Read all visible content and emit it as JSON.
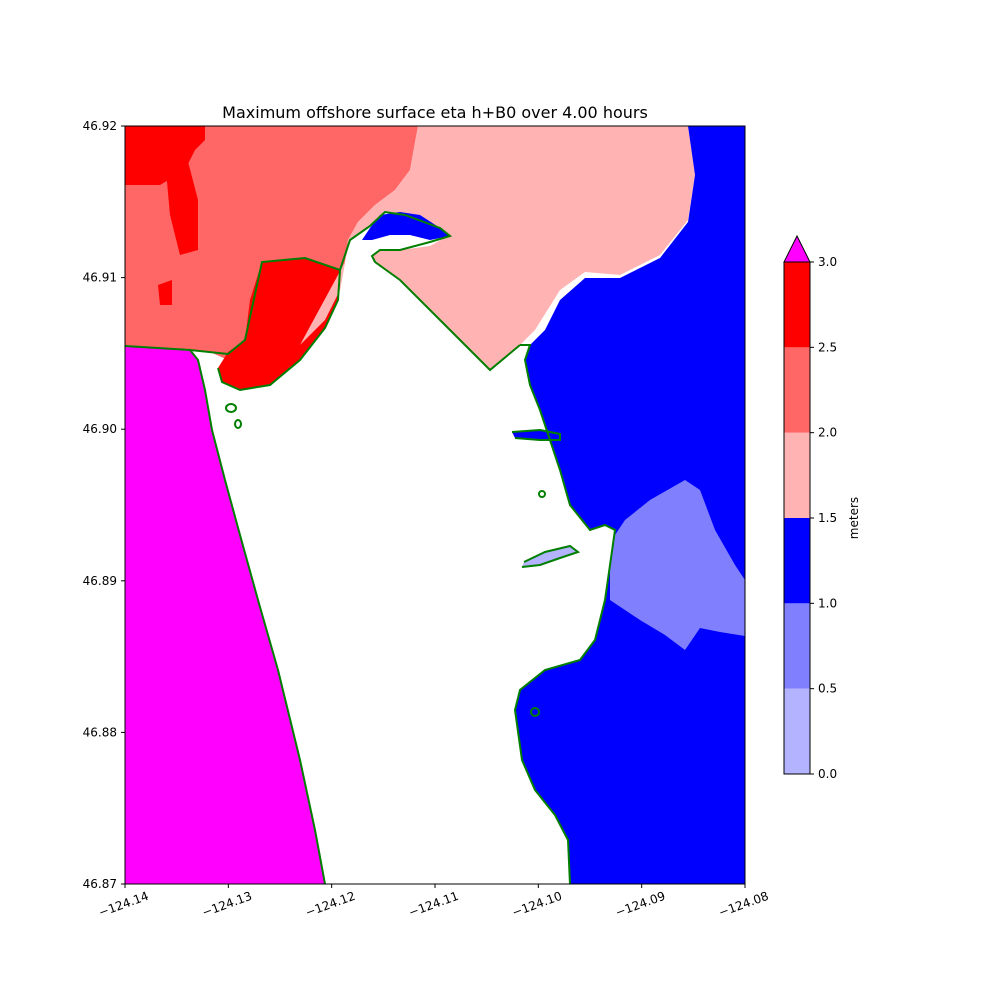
{
  "chart_data": {
    "type": "heatmap",
    "title": "Maximum offshore surface eta h+B0 over 4.00 hours",
    "xlim": [
      -124.14,
      -124.08
    ],
    "ylim": [
      46.87,
      46.92
    ],
    "x_ticks": [
      "−124.14",
      "−124.13",
      "−124.12",
      "−124.11",
      "−124.10",
      "−124.09",
      "−124.08"
    ],
    "y_ticks": [
      "46.87",
      "46.88",
      "46.89",
      "46.90",
      "46.91",
      "46.92"
    ],
    "x_tick_values": [
      -124.14,
      -124.13,
      -124.12,
      -124.11,
      -124.1,
      -124.09,
      -124.08
    ],
    "y_tick_values": [
      46.87,
      46.88,
      46.89,
      46.9,
      46.91,
      46.92
    ],
    "grid": false,
    "colorbar": {
      "label": "meters",
      "levels": [
        0.0,
        0.5,
        1.0,
        1.5,
        2.0,
        2.5,
        3.0
      ],
      "tick_labels": [
        "0.0",
        "0.5",
        "1.0",
        "1.5",
        "2.0",
        "2.5",
        "3.0"
      ],
      "colors": [
        "#b3b3ff",
        "#8080ff",
        "#0000ff",
        "#ffb3b3",
        "#ff6666",
        "#ff0000"
      ],
      "extend_color": "#ff00ff",
      "extend": "max",
      "placement": "right"
    },
    "shoreline_color": "#007f00",
    "land_color": "#ffffff"
  }
}
